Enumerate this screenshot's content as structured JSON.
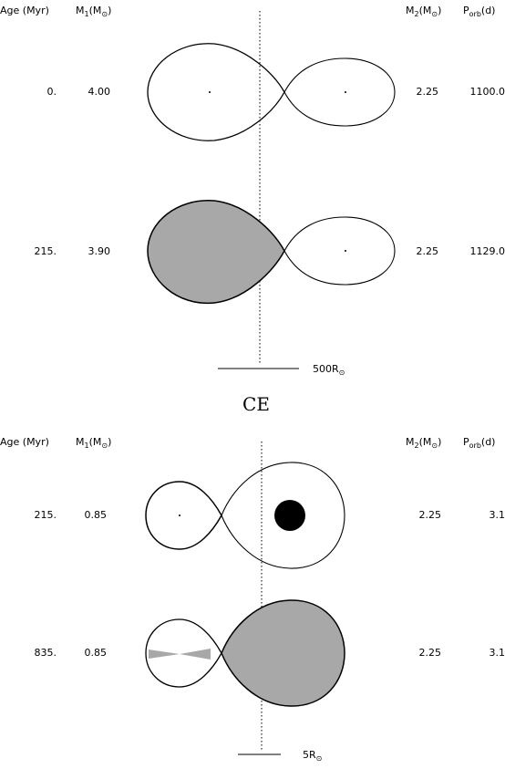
{
  "colors": {
    "ink": "#000000",
    "filled_lobe": "#a8a8a8",
    "background": "#ffffff",
    "compact_object": "#000000"
  },
  "headers": {
    "age": "Age (Myr)",
    "m1_base": "M",
    "m1_sub": "1",
    "m1_rest": "(M",
    "m1_sym": "⊙",
    "m1_close": ")",
    "m2_base": "M",
    "m2_sub": "2",
    "m2_rest": "(M",
    "m2_sym": "⊙",
    "m2_close": ")",
    "p_base": "P",
    "p_sub": "orb",
    "p_rest": "(d)"
  },
  "stages_top": [
    {
      "age": "0.",
      "m1": "4.00",
      "m2": "2.25",
      "porb": "1100.0"
    },
    {
      "age": "215.",
      "m1": "3.90",
      "m2": "2.25",
      "porb": "1129.0"
    }
  ],
  "stages_bottom": [
    {
      "age": "215.",
      "m1": "0.85",
      "m2": "2.25",
      "porb": "3.1"
    },
    {
      "age": "835.",
      "m1": "0.85",
      "m2": "2.25",
      "porb": "3.1"
    }
  ],
  "scale_top": {
    "value": "500R",
    "sym": "⊙"
  },
  "scale_bottom": {
    "value": "5R",
    "sym": "⊙"
  },
  "separator": "CE"
}
